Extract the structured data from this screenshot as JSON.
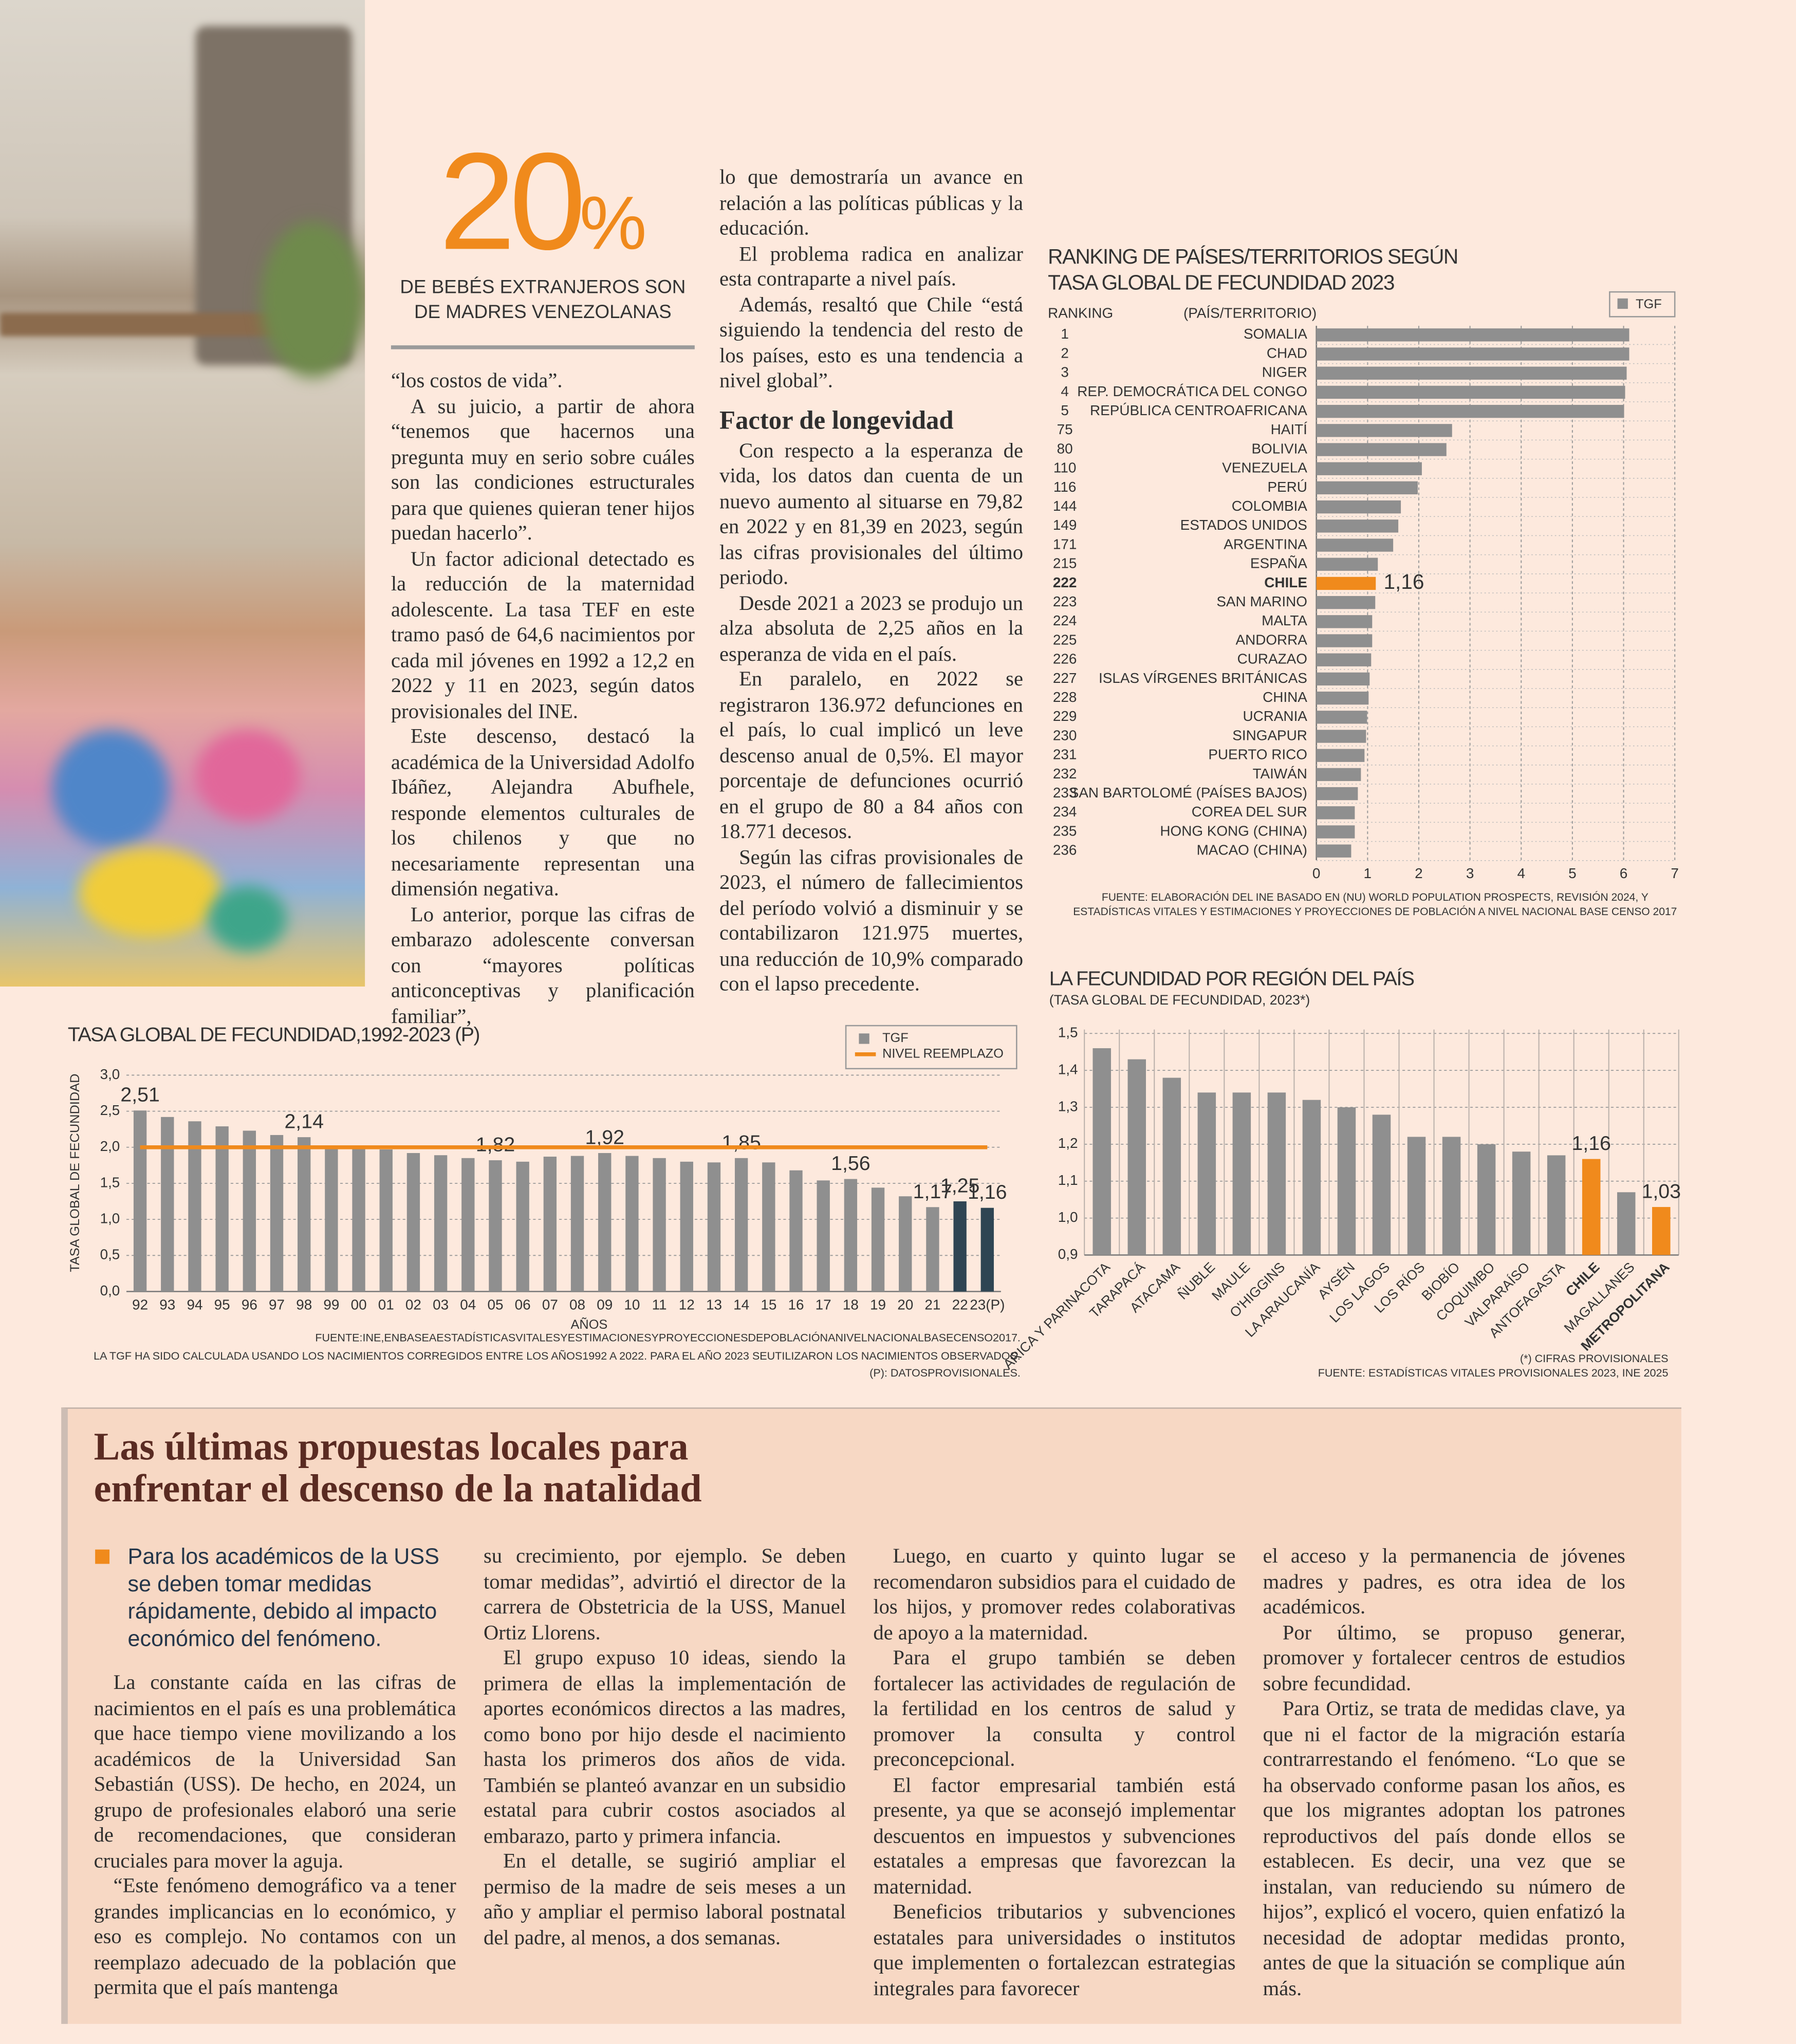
{
  "highlight": {
    "figure": "20",
    "unit": "%",
    "caption": "DE BEBÉS EXTRANJEROS SON DE MADRES VENEZOLANAS"
  },
  "article": {
    "column_1": [
      "“los costos de vida”.",
      "A su juicio, a partir de ahora “tenemos que hacernos una pregunta muy en serio sobre cuáles son las condiciones estructurales para que quienes quieran tener hijos puedan hacerlo”.",
      "Un factor adicional detectado es la reducción de la maternidad adolescente. La tasa TEF en este tramo pasó de 64,6 nacimientos por cada mil jóvenes en 1992 a 12,2 en 2022 y 11 en 2023, según datos provisionales del INE.",
      "Este descenso, destacó la académica de la Universidad Adolfo Ibáñez, Alejandra Abufhele, responde elementos culturales de los chilenos y que no necesariamente representan una dimensión negativa.",
      "Lo anterior, porque las cifras de embarazo adolescente conversan con “mayores políticas anticonceptivas y planificación familiar”,"
    ],
    "column_2_intro": [
      "lo que demostraría un avance en relación a las políticas públicas y la educación.",
      "El problema radica en analizar esta contraparte a nivel país.",
      "Además, resaltó que Chile “está siguiendo la tendencia del resto de los países, esto es una tendencia a nivel global”."
    ],
    "subhead": "Factor de longevidad",
    "column_2": [
      "Con respecto a la esperanza de vida, los datos dan cuenta de un nuevo aumento al situarse en 79,82 en 2022 y en 81,39 en 2023, según las cifras provisionales del último periodo.",
      "Desde 2021 a 2023 se produjo un alza absoluta de 2,25 años en la esperanza de vida en el país.",
      "En paralelo, en 2022 se registraron 136.972 defunciones en el país, lo cual implicó un leve descenso anual de 0,5%. El mayor porcentaje de defunciones ocurrió en el grupo de 80 a 84 años con 18.771 decesos.",
      "Según las cifras provisionales de 2023, el número de fallecimientos del período volvió a disminuir y se contabilizaron 121.975 muertes, una reducción de 10,9% comparado con el lapso precedente."
    ]
  },
  "sidebar": {
    "title_lines": [
      "Las últimas propuestas locales para",
      "enfrentar el descenso de la natalidad"
    ],
    "lead": "Para los académicos de la USS se deben tomar medidas rápidamente, debido al impacto económico del fenómeno.",
    "columns": [
      [
        "La constante caída en las cifras de nacimientos en el país es una problemática que hace tiempo viene movilizando a los académicos de la Universidad San Sebastián (USS). De hecho, en 2024, un grupo de profesionales elaboró una serie de recomendaciones, que consideran cruciales para mover la aguja.",
        "“Este fenómeno demográfico va a tener grandes implicancias en lo económico, y eso es complejo. No contamos con un reemplazo adecuado de la población que permita que el país mantenga"
      ],
      [
        "su crecimiento, por ejemplo. Se deben tomar medidas”, advirtió el director de la carrera de Obstetricia de la USS, Manuel Ortiz Llorens.",
        "El grupo expuso 10 ideas, siendo la primera de ellas la implementación de aportes económicos directos a las madres, como bono por hijo desde el nacimiento hasta los primeros dos años de vida. También se planteó avanzar en un subsidio estatal para cubrir costos asociados al embarazo, parto y primera infancia.",
        "En el detalle, se sugirió ampliar el permiso de la madre de seis meses a un año y ampliar el permiso laboral postnatal del padre, al menos, a dos semanas."
      ],
      [
        "Luego, en cuarto y quinto lugar se recomendaron subsidios para el cuidado de los hijos, y promover redes colaborativas de apoyo a la maternidad.",
        "Para el grupo también se deben fortalecer las actividades de regulación de la fertilidad en los centros de salud y promover la consulta y control preconcepcional.",
        "El factor empresarial también está presente, ya que se aconsejó implementar descuentos en impuestos y subvenciones estatales a empresas que favorezcan la maternidad.",
        "Beneficios tributarios y subvenciones estatales para universidades o institutos que implementen o fortalezcan estrategias integrales para favorecer"
      ],
      [
        "el acceso y la permanencia de jóvenes madres y padres, es otra idea de los académicos.",
        "Por último, se propuso generar, promover y fortalecer centros de estudios sobre fecundidad.",
        "Para Ortiz, se trata de medidas clave, ya que ni el factor de la migración estaría contrarrestando el fenómeno. “Lo que se ha observado conforme pasan los años, es que los migrantes adoptan los patrones reproductivos del país donde ellos se establecen. Es decir, una vez que se instalan, van reduciendo su número de hijos”, explicó el vocero, quien enfatizó la necesidad de adoptar medidas pronto, antes de que la situación se complique aún más."
      ]
    ]
  },
  "chart_data": [
    {
      "type": "bar",
      "orientation": "horizontal",
      "title_lines": [
        "RANKING DE PAÍSES/TERRITORIOS SEGÚN",
        "TASA GLOBAL DE FECUNDIDAD 2023"
      ],
      "rank_header": "RANKING",
      "category_header": "(PAÍS/TERRITORIO)",
      "rankings": [
        1,
        2,
        3,
        4,
        5,
        75,
        80,
        110,
        116,
        144,
        149,
        171,
        215,
        222,
        223,
        224,
        225,
        226,
        227,
        228,
        229,
        230,
        231,
        232,
        233,
        234,
        235,
        236
      ],
      "categories": [
        "SOMALIA",
        "CHAD",
        "NIGER",
        "REP. DEMOCRÁTICA DEL CONGO",
        "REPÚBLICA CENTROAFRICANA",
        "HAITÍ",
        "BOLIVIA",
        "VENEZUELA",
        "PERÚ",
        "COLOMBIA",
        "ESTADOS UNIDOS",
        "ARGENTINA",
        "ESPAÑA",
        "CHILE",
        "SAN MARINO",
        "MALTA",
        "ANDORRA",
        "CURAZAO",
        "ISLAS VÍRGENES BRITÁNICAS",
        "CHINA",
        "UCRANIA",
        "SINGAPUR",
        "PUERTO RICO",
        "TAIWÁN",
        "SAN BARTOLOMÉ (PAÍSES BAJOS)",
        "COREA DEL SUR",
        "HONG KONG (CHINA)",
        "MACAO (CHINA)"
      ],
      "series": [
        {
          "name": "TGF",
          "color": "#8f8f8f",
          "values": [
            6.11,
            6.11,
            6.06,
            6.03,
            6.01,
            2.65,
            2.54,
            2.06,
            1.98,
            1.65,
            1.6,
            1.5,
            1.2,
            1.16,
            1.15,
            1.09,
            1.09,
            1.07,
            1.04,
            1.02,
            0.99,
            0.97,
            0.94,
            0.87,
            0.81,
            0.75,
            0.75,
            0.68
          ],
          "colors": [
            "#8f8f8f",
            "#8f8f8f",
            "#8f8f8f",
            "#8f8f8f",
            "#8f8f8f",
            "#8f8f8f",
            "#8f8f8f",
            "#8f8f8f",
            "#8f8f8f",
            "#8f8f8f",
            "#8f8f8f",
            "#8f8f8f",
            "#8f8f8f",
            "#f08a1c",
            "#8f8f8f",
            "#8f8f8f",
            "#8f8f8f",
            "#8f8f8f",
            "#8f8f8f",
            "#8f8f8f",
            "#8f8f8f",
            "#8f8f8f",
            "#8f8f8f",
            "#8f8f8f",
            "#8f8f8f",
            "#8f8f8f",
            "#8f8f8f",
            "#8f8f8f"
          ],
          "value_labels": [
            null,
            null,
            null,
            null,
            null,
            null,
            null,
            null,
            null,
            null,
            null,
            null,
            null,
            "1,16",
            null,
            null,
            null,
            null,
            null,
            null,
            null,
            null,
            null,
            null,
            null,
            null,
            null,
            null
          ]
        }
      ],
      "xlim": [
        0,
        7
      ],
      "xticks": [
        0,
        1,
        2,
        3,
        4,
        5,
        6,
        7
      ],
      "grid": true,
      "legend": "top-right",
      "notes": [
        "FUENTE: ELABORACIÓN DEL INE BASADO EN (NU) WORLD POPULATION PROSPECTS, REVISIÓN 2024, Y",
        "ESTADÍSTICAS VITALES Y ESTIMACIONES Y PROYECCIONES DE POBLACIÓN A NIVEL NACIONAL BASE CENSO 2017"
      ]
    },
    {
      "type": "bar",
      "orientation": "vertical",
      "title": "TASA GLOBAL DE FECUNDIDAD,1992-2023 (P)",
      "xlabel": "AÑOS",
      "ylabel": "TASA GLOBAL DE FECUNDIDAD",
      "categories": [
        "92",
        "93",
        "94",
        "95",
        "96",
        "97",
        "98",
        "99",
        "00",
        "01",
        "02",
        "03",
        "04",
        "05",
        "06",
        "07",
        "08",
        "09",
        "10",
        "11",
        "12",
        "13",
        "14",
        "15",
        "16",
        "17",
        "18",
        "19",
        "20",
        "21",
        "22",
        "23(P)"
      ],
      "series": [
        {
          "name": "TGF",
          "color": "#8f8f8f",
          "values": [
            2.51,
            2.42,
            2.36,
            2.29,
            2.23,
            2.17,
            2.14,
            2.0,
            2.0,
            1.97,
            1.92,
            1.89,
            1.85,
            1.82,
            1.8,
            1.87,
            1.88,
            1.92,
            1.88,
            1.85,
            1.8,
            1.79,
            1.85,
            1.79,
            1.68,
            1.54,
            1.56,
            1.44,
            1.32,
            1.17,
            1.25,
            1.16
          ],
          "colors": [
            "#8f8f8f",
            "#8f8f8f",
            "#8f8f8f",
            "#8f8f8f",
            "#8f8f8f",
            "#8f8f8f",
            "#8f8f8f",
            "#8f8f8f",
            "#8f8f8f",
            "#8f8f8f",
            "#8f8f8f",
            "#8f8f8f",
            "#8f8f8f",
            "#8f8f8f",
            "#8f8f8f",
            "#8f8f8f",
            "#8f8f8f",
            "#8f8f8f",
            "#8f8f8f",
            "#8f8f8f",
            "#8f8f8f",
            "#8f8f8f",
            "#8f8f8f",
            "#8f8f8f",
            "#8f8f8f",
            "#8f8f8f",
            "#8f8f8f",
            "#8f8f8f",
            "#8f8f8f",
            "#8f8f8f",
            "#2f4553",
            "#2f4553"
          ],
          "value_labels": [
            "2,51",
            null,
            null,
            null,
            null,
            null,
            "2,14",
            null,
            null,
            null,
            null,
            null,
            null,
            "1,82",
            null,
            null,
            null,
            "1,92",
            null,
            null,
            null,
            null,
            "1,85",
            null,
            null,
            null,
            "1,56",
            null,
            null,
            "1,17",
            "1,25",
            "1,16"
          ]
        },
        {
          "name": "NIVEL REEMPLAZO",
          "color": "#f08a1c",
          "type": "line",
          "values": [
            2.0,
            2.0,
            2.0,
            2.0,
            2.0,
            2.0,
            2.0,
            2.0,
            2.0,
            2.0,
            2.0,
            2.0,
            2.0,
            2.0,
            2.0,
            2.0,
            2.0,
            2.0,
            2.0,
            2.0,
            2.0,
            2.0,
            2.0,
            2.0,
            2.0,
            2.0,
            2.0,
            2.0,
            2.0,
            2.0,
            2.0,
            2.0
          ]
        }
      ],
      "ylim": [
        0,
        3
      ],
      "yticks": [
        {
          "value": 0,
          "label": "0,0"
        },
        {
          "value": 0.5,
          "label": "0,5"
        },
        {
          "value": 1,
          "label": "1,0"
        },
        {
          "value": 1.5,
          "label": "1,5"
        },
        {
          "value": 2,
          "label": "2,0"
        },
        {
          "value": 2.5,
          "label": "2,5"
        },
        {
          "value": 3,
          "label": "3,0"
        }
      ],
      "grid": true,
      "legend": "top-right",
      "notes": [
        "FUENTE:INE,ENBASEAESTADÍSTICASVITALESYESTIMACIONESYPROYECCIONESDEPOBLACIÓNANIVELNACIONALBASECENSO2017.",
        "LA TGF HA SIDO CALCULADA USANDO LOS NACIMIENTOS CORREGIDOS ENTRE LOS AÑOS1992 A 2022. PARA EL AÑO 2023 SEUTILIZARON LOS NACIMIENTOS OBSERVADOS.",
        "(P): DATOSPROVISIONALES."
      ]
    },
    {
      "type": "bar",
      "orientation": "vertical",
      "title": "LA FECUNDIDAD POR REGIÓN DEL PAÍS",
      "subtitle": "(TASA GLOBAL DE FECUNDIDAD, 2023*)",
      "categories": [
        "ARICA Y PARINACOTA",
        "TARAPACÁ",
        "ATACAMA",
        "ÑUBLE",
        "MAULE",
        "O'HIGGINS",
        "LA ARAUCANÍA",
        "AYSÉN",
        "LOS LAGOS",
        "LOS RÍOS",
        "BIOBÍO",
        "COQUIMBO",
        "VALPARAÍSO",
        "ANTOFAGASTA",
        "CHILE",
        "MAGALLANES",
        "METROPOLITANA"
      ],
      "series": [
        {
          "name": "TGF",
          "color": "#8f8f8f",
          "values": [
            1.46,
            1.43,
            1.38,
            1.34,
            1.34,
            1.34,
            1.32,
            1.3,
            1.28,
            1.22,
            1.22,
            1.2,
            1.18,
            1.17,
            1.16,
            1.07,
            1.03
          ],
          "colors": [
            "#8f8f8f",
            "#8f8f8f",
            "#8f8f8f",
            "#8f8f8f",
            "#8f8f8f",
            "#8f8f8f",
            "#8f8f8f",
            "#8f8f8f",
            "#8f8f8f",
            "#8f8f8f",
            "#8f8f8f",
            "#8f8f8f",
            "#8f8f8f",
            "#8f8f8f",
            "#f08a1c",
            "#8f8f8f",
            "#f08a1c"
          ],
          "value_labels": [
            null,
            null,
            null,
            null,
            null,
            null,
            null,
            null,
            null,
            null,
            null,
            null,
            null,
            null,
            "1,16",
            null,
            "1,03"
          ]
        }
      ],
      "ylim": [
        0.9,
        1.5
      ],
      "yticks": [
        {
          "value": 0.9,
          "label": "0,9"
        },
        {
          "value": 1,
          "label": "1,0"
        },
        {
          "value": 1.1,
          "label": "1,1"
        },
        {
          "value": 1.2,
          "label": "1,2"
        },
        {
          "value": 1.3,
          "label": "1,3"
        },
        {
          "value": 1.4,
          "label": "1,4"
        },
        {
          "value": 1.5,
          "label": "1,5"
        }
      ],
      "grid": true,
      "notes": [
        "(*) CIFRAS PROVISIONALES",
        "FUENTE: ESTADÍSTICAS VITALES PROVISIONALES 2023, INE 2025"
      ]
    }
  ]
}
